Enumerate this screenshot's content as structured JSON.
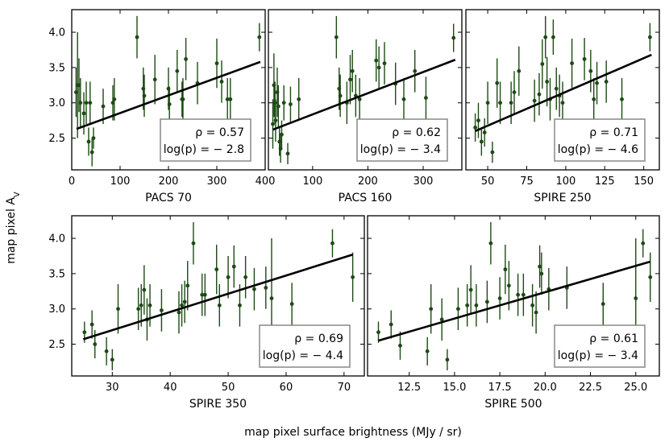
{
  "figure": {
    "ylabel": "map pixel A",
    "ylabel_sub": "V",
    "xlabel": "map pixel surface brightness (MJy / sr)",
    "point_color": "#1d4a14",
    "fit_color": "#000000"
  },
  "chart_data": [
    {
      "type": "scatter",
      "panel": "PACS 70",
      "xlabel": "PACS 70",
      "xlim": [
        0,
        400
      ],
      "ylim": [
        2.05,
        4.32
      ],
      "xticks": [
        "0",
        "100",
        "200",
        "300",
        "400"
      ],
      "xtick_values": [
        0,
        100,
        200,
        300,
        400
      ],
      "yticks": [
        "2.5",
        "3.0",
        "3.5",
        "4.0"
      ],
      "ytick_values": [
        2.5,
        3.0,
        3.5,
        4.0
      ],
      "rho_label": "ρ = 0.57",
      "logp_label": "log(p) = − 2.8",
      "fit": {
        "x": [
          10,
          390
        ],
        "y": [
          2.63,
          3.58
        ]
      },
      "points": [
        {
          "x": 9,
          "y": 3.15,
          "err": 0.35
        },
        {
          "x": 12,
          "y": 3.25,
          "err": 0.75
        },
        {
          "x": 15,
          "y": 3.25,
          "err": 0.38
        },
        {
          "x": 18,
          "y": 3.0,
          "err": 0.35
        },
        {
          "x": 25,
          "y": 2.85,
          "err": 0.3
        },
        {
          "x": 30,
          "y": 3.0,
          "err": 0.3
        },
        {
          "x": 35,
          "y": 2.45,
          "err": 0.2
        },
        {
          "x": 38,
          "y": 3.0,
          "err": 0.3
        },
        {
          "x": 42,
          "y": 2.3,
          "err": 0.2
        },
        {
          "x": 45,
          "y": 2.5,
          "err": 0.15
        },
        {
          "x": 65,
          "y": 2.95,
          "err": 0.25
        },
        {
          "x": 85,
          "y": 3.0,
          "err": 0.25
        },
        {
          "x": 88,
          "y": 3.05,
          "err": 0.3
        },
        {
          "x": 135,
          "y": 3.93,
          "err": 0.3
        },
        {
          "x": 148,
          "y": 3.2,
          "err": 0.3
        },
        {
          "x": 150,
          "y": 3.1,
          "err": 0.3
        },
        {
          "x": 172,
          "y": 3.33,
          "err": 0.35
        },
        {
          "x": 200,
          "y": 3.2,
          "err": 0.3
        },
        {
          "x": 202,
          "y": 2.98,
          "err": 0.25
        },
        {
          "x": 218,
          "y": 3.45,
          "err": 0.3
        },
        {
          "x": 228,
          "y": 3.05,
          "err": 0.25
        },
        {
          "x": 230,
          "y": 3.05,
          "err": 0.3
        },
        {
          "x": 236,
          "y": 3.62,
          "err": 0.3
        },
        {
          "x": 260,
          "y": 3.28,
          "err": 0.3
        },
        {
          "x": 300,
          "y": 3.56,
          "err": 0.35
        },
        {
          "x": 310,
          "y": 3.3,
          "err": 0.3
        },
        {
          "x": 322,
          "y": 3.05,
          "err": 0.3
        },
        {
          "x": 328,
          "y": 3.05,
          "err": 0.3
        },
        {
          "x": 388,
          "y": 3.93,
          "err": 0.2
        }
      ]
    },
    {
      "type": "scatter",
      "panel": "PACS 160",
      "xlabel": "PACS 160",
      "xlim": [
        20,
        370
      ],
      "ylim": [
        2.05,
        4.32
      ],
      "xticks": [
        "100",
        "200",
        "300"
      ],
      "xtick_values": [
        100,
        200,
        300
      ],
      "yticks": [],
      "ytick_values": [
        2.5,
        3.0,
        3.5,
        4.0
      ],
      "rho_label": "ρ = 0.62",
      "logp_label": "log(p) = − 3.4",
      "fit": {
        "x": [
          28,
          358
        ],
        "y": [
          2.62,
          3.61
        ]
      },
      "points": [
        {
          "x": 28,
          "y": 2.7,
          "err": 0.35
        },
        {
          "x": 30,
          "y": 3.25,
          "err": 0.45
        },
        {
          "x": 32,
          "y": 3.0,
          "err": 0.3
        },
        {
          "x": 33,
          "y": 2.75,
          "err": 0.3
        },
        {
          "x": 36,
          "y": 3.15,
          "err": 0.35
        },
        {
          "x": 38,
          "y": 2.95,
          "err": 0.3
        },
        {
          "x": 40,
          "y": 2.45,
          "err": 0.2
        },
        {
          "x": 42,
          "y": 2.35,
          "err": 0.2
        },
        {
          "x": 44,
          "y": 2.55,
          "err": 0.2
        },
        {
          "x": 48,
          "y": 3.0,
          "err": 0.25
        },
        {
          "x": 55,
          "y": 2.28,
          "err": 0.15
        },
        {
          "x": 60,
          "y": 2.98,
          "err": 0.25
        },
        {
          "x": 75,
          "y": 3.05,
          "err": 0.3
        },
        {
          "x": 143,
          "y": 3.93,
          "err": 0.3
        },
        {
          "x": 148,
          "y": 3.2,
          "err": 0.3
        },
        {
          "x": 150,
          "y": 3.1,
          "err": 0.3
        },
        {
          "x": 162,
          "y": 3.0,
          "err": 0.3
        },
        {
          "x": 168,
          "y": 3.33,
          "err": 0.35
        },
        {
          "x": 172,
          "y": 3.45,
          "err": 0.3
        },
        {
          "x": 178,
          "y": 3.1,
          "err": 0.3
        },
        {
          "x": 185,
          "y": 3.05,
          "err": 0.3
        },
        {
          "x": 215,
          "y": 3.6,
          "err": 0.3
        },
        {
          "x": 220,
          "y": 3.5,
          "err": 0.3
        },
        {
          "x": 230,
          "y": 3.56,
          "err": 0.3
        },
        {
          "x": 250,
          "y": 3.27,
          "err": 0.3
        },
        {
          "x": 265,
          "y": 3.05,
          "err": 0.3
        },
        {
          "x": 285,
          "y": 3.45,
          "err": 0.3
        },
        {
          "x": 305,
          "y": 3.07,
          "err": 0.3
        },
        {
          "x": 355,
          "y": 3.92,
          "err": 0.2
        }
      ]
    },
    {
      "type": "scatter",
      "panel": "SPIRE 250",
      "xlabel": "SPIRE 250",
      "xlim": [
        36,
        160
      ],
      "ylim": [
        2.05,
        4.32
      ],
      "xticks": [
        "50",
        "75",
        "100",
        "125",
        "150"
      ],
      "xtick_values": [
        50,
        75,
        100,
        125,
        150
      ],
      "yticks": [],
      "ytick_values": [
        2.5,
        3.0,
        3.5,
        4.0
      ],
      "rho_label": "ρ = 0.71",
      "logp_label": "log(p) = − 4.6",
      "fit": {
        "x": [
          42,
          155
        ],
        "y": [
          2.6,
          3.68
        ]
      },
      "points": [
        {
          "x": 42,
          "y": 2.65,
          "err": 0.2
        },
        {
          "x": 44,
          "y": 2.75,
          "err": 0.25
        },
        {
          "x": 46,
          "y": 2.45,
          "err": 0.2
        },
        {
          "x": 48,
          "y": 2.58,
          "err": 0.2
        },
        {
          "x": 50,
          "y": 3.0,
          "err": 0.3
        },
        {
          "x": 53,
          "y": 2.3,
          "err": 0.15
        },
        {
          "x": 56,
          "y": 3.28,
          "err": 0.35
        },
        {
          "x": 58,
          "y": 3.0,
          "err": 0.3
        },
        {
          "x": 65,
          "y": 3.0,
          "err": 0.3
        },
        {
          "x": 67,
          "y": 3.15,
          "err": 0.3
        },
        {
          "x": 70,
          "y": 3.45,
          "err": 0.35
        },
        {
          "x": 80,
          "y": 3.03,
          "err": 0.3
        },
        {
          "x": 83,
          "y": 3.12,
          "err": 0.3
        },
        {
          "x": 85,
          "y": 3.55,
          "err": 0.35
        },
        {
          "x": 87,
          "y": 3.93,
          "err": 0.3
        },
        {
          "x": 88,
          "y": 3.3,
          "err": 0.35
        },
        {
          "x": 90,
          "y": 3.05,
          "err": 0.3
        },
        {
          "x": 92,
          "y": 3.93,
          "err": 0.25
        },
        {
          "x": 94,
          "y": 3.2,
          "err": 0.3
        },
        {
          "x": 96,
          "y": 3.1,
          "err": 0.3
        },
        {
          "x": 98,
          "y": 3.0,
          "err": 0.3
        },
        {
          "x": 104,
          "y": 3.56,
          "err": 0.35
        },
        {
          "x": 112,
          "y": 3.62,
          "err": 0.3
        },
        {
          "x": 116,
          "y": 3.45,
          "err": 0.3
        },
        {
          "x": 118,
          "y": 3.05,
          "err": 0.3
        },
        {
          "x": 120,
          "y": 3.28,
          "err": 0.3
        },
        {
          "x": 126,
          "y": 3.3,
          "err": 0.3
        },
        {
          "x": 136,
          "y": 3.05,
          "err": 0.3
        },
        {
          "x": 154,
          "y": 3.93,
          "err": 0.2
        }
      ]
    },
    {
      "type": "scatter",
      "panel": "SPIRE 350",
      "xlabel": "SPIRE 350",
      "xlim": [
        23,
        73.5
      ],
      "ylim": [
        2.05,
        4.32
      ],
      "xticks": [
        "30",
        "40",
        "50",
        "60",
        "70"
      ],
      "xtick_values": [
        30,
        40,
        50,
        60,
        70
      ],
      "yticks": [
        "2.5",
        "3.0",
        "3.5",
        "4.0"
      ],
      "ytick_values": [
        2.5,
        3.0,
        3.5,
        4.0
      ],
      "rho_label": "ρ = 0.69",
      "logp_label": "log(p) = − 4.4",
      "fit": {
        "x": [
          25,
          71.5
        ],
        "y": [
          2.57,
          3.77
        ]
      },
      "points": [
        {
          "x": 25.2,
          "y": 2.67,
          "err": 0.15
        },
        {
          "x": 26.5,
          "y": 2.78,
          "err": 0.2
        },
        {
          "x": 27,
          "y": 2.5,
          "err": 0.2
        },
        {
          "x": 29,
          "y": 2.4,
          "err": 0.2
        },
        {
          "x": 30,
          "y": 2.28,
          "err": 0.15
        },
        {
          "x": 31,
          "y": 3.0,
          "err": 0.35
        },
        {
          "x": 34.5,
          "y": 3.0,
          "err": 0.3
        },
        {
          "x": 35,
          "y": 3.05,
          "err": 0.3
        },
        {
          "x": 35.5,
          "y": 3.27,
          "err": 0.35
        },
        {
          "x": 36,
          "y": 2.85,
          "err": 0.3
        },
        {
          "x": 36.5,
          "y": 3.05,
          "err": 0.3
        },
        {
          "x": 38.5,
          "y": 2.98,
          "err": 0.3
        },
        {
          "x": 41.5,
          "y": 2.95,
          "err": 0.3
        },
        {
          "x": 42,
          "y": 3.05,
          "err": 0.3
        },
        {
          "x": 42.5,
          "y": 3.1,
          "err": 0.3
        },
        {
          "x": 43,
          "y": 3.33,
          "err": 0.35
        },
        {
          "x": 44,
          "y": 3.93,
          "err": 0.3
        },
        {
          "x": 45.5,
          "y": 3.2,
          "err": 0.3
        },
        {
          "x": 46,
          "y": 3.2,
          "err": 0.3
        },
        {
          "x": 48,
          "y": 3.56,
          "err": 0.35
        },
        {
          "x": 48.5,
          "y": 3.05,
          "err": 0.3
        },
        {
          "x": 50,
          "y": 3.45,
          "err": 0.3
        },
        {
          "x": 51,
          "y": 3.6,
          "err": 0.3
        },
        {
          "x": 52,
          "y": 3.05,
          "err": 0.3
        },
        {
          "x": 53,
          "y": 3.45,
          "err": 0.3
        },
        {
          "x": 54.5,
          "y": 3.28,
          "err": 0.3
        },
        {
          "x": 56.5,
          "y": 3.3,
          "err": 0.3
        },
        {
          "x": 57.5,
          "y": 3.15,
          "err": 0.85
        },
        {
          "x": 61,
          "y": 3.07,
          "err": 0.3
        },
        {
          "x": 68,
          "y": 3.93,
          "err": 0.2
        },
        {
          "x": 71.5,
          "y": 3.45,
          "err": 0.35
        }
      ]
    },
    {
      "type": "scatter",
      "panel": "SPIRE 500",
      "xlabel": "SPIRE 500",
      "xlim": [
        10.2,
        26.3
      ],
      "ylim": [
        2.05,
        4.32
      ],
      "xticks": [
        "12.5",
        "15.0",
        "17.5",
        "20.0",
        "22.5",
        "25.0"
      ],
      "xtick_values": [
        12.5,
        15.0,
        17.5,
        20.0,
        22.5,
        25.0
      ],
      "yticks": [],
      "ytick_values": [
        2.5,
        3.0,
        3.5,
        4.0
      ],
      "rho_label": "ρ = 0.61",
      "logp_label": "log(p) = − 3.4",
      "fit": {
        "x": [
          10.8,
          25.8
        ],
        "y": [
          2.55,
          3.67
        ]
      },
      "points": [
        {
          "x": 10.8,
          "y": 2.67,
          "err": 0.15
        },
        {
          "x": 11.5,
          "y": 2.78,
          "err": 0.2
        },
        {
          "x": 12,
          "y": 2.48,
          "err": 0.2
        },
        {
          "x": 13.5,
          "y": 2.4,
          "err": 0.2
        },
        {
          "x": 13.7,
          "y": 3.0,
          "err": 0.35
        },
        {
          "x": 14.3,
          "y": 2.85,
          "err": 0.3
        },
        {
          "x": 14.6,
          "y": 2.28,
          "err": 0.15
        },
        {
          "x": 15.2,
          "y": 3.0,
          "err": 0.3
        },
        {
          "x": 15.7,
          "y": 3.05,
          "err": 0.3
        },
        {
          "x": 15.9,
          "y": 3.27,
          "err": 0.35
        },
        {
          "x": 16.2,
          "y": 3.05,
          "err": 0.3
        },
        {
          "x": 16.8,
          "y": 3.1,
          "err": 0.3
        },
        {
          "x": 17,
          "y": 3.93,
          "err": 0.3
        },
        {
          "x": 17.5,
          "y": 3.15,
          "err": 0.3
        },
        {
          "x": 17.8,
          "y": 3.56,
          "err": 0.35
        },
        {
          "x": 18,
          "y": 3.33,
          "err": 0.35
        },
        {
          "x": 18.5,
          "y": 3.2,
          "err": 0.3
        },
        {
          "x": 18.8,
          "y": 3.2,
          "err": 0.3
        },
        {
          "x": 19.3,
          "y": 3.05,
          "err": 0.3
        },
        {
          "x": 19.5,
          "y": 2.95,
          "err": 0.3
        },
        {
          "x": 19.7,
          "y": 3.6,
          "err": 0.3
        },
        {
          "x": 19.8,
          "y": 3.5,
          "err": 0.3
        },
        {
          "x": 20.2,
          "y": 3.28,
          "err": 0.3
        },
        {
          "x": 21.2,
          "y": 3.3,
          "err": 0.3
        },
        {
          "x": 23.2,
          "y": 3.07,
          "err": 0.3
        },
        {
          "x": 25,
          "y": 3.15,
          "err": 0.85
        },
        {
          "x": 25.4,
          "y": 3.93,
          "err": 0.2
        },
        {
          "x": 25.8,
          "y": 3.45,
          "err": 0.35
        }
      ]
    }
  ]
}
